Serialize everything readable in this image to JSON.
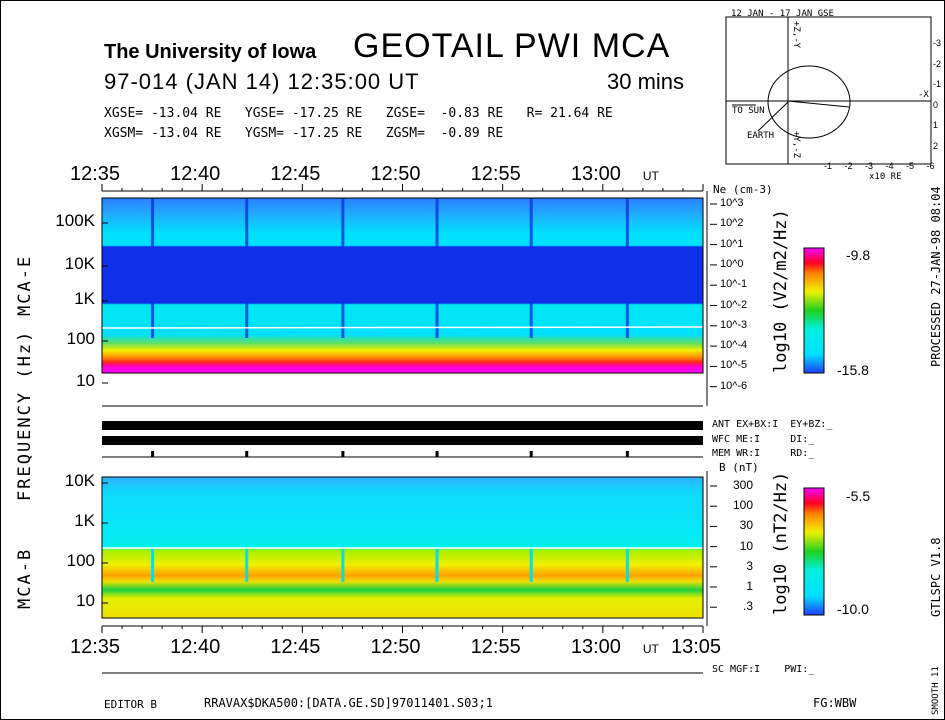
{
  "header": {
    "institution": "The University of Iowa",
    "title": "GEOTAIL PWI MCA",
    "date_line": "97-014 (JAN 14) 12:35:00 UT",
    "duration": "30 mins",
    "gse_line": "XGSE= -13.04 RE   YGSE= -17.25 RE   ZGSE=  -0.83 RE   R= 21.64 RE",
    "gsm_line": "XGSM= -13.04 RE   YGSM= -17.25 RE   ZGSM=  -0.89 RE"
  },
  "orbit_plot": {
    "title": "12 JAN - 17 JAN  GSE",
    "to_sun": "TO SUN",
    "earth": "EARTH",
    "x_label": "x10 RE",
    "x_ticks": [
      "-1",
      "-2",
      "-3",
      "-4",
      "-5",
      "-6"
    ],
    "y_ticks": [
      "-3",
      "-2",
      "-1",
      "0",
      "1",
      "2"
    ],
    "axis_top": "+Z,-Y",
    "axis_bottom": "+Y,-Z",
    "axis_right": "-X"
  },
  "chart_data": [
    {
      "type": "heatmap",
      "panel": "MCA-E",
      "ylabel": "FREQUENCY (Hz)",
      "panel_label": "MCA-E",
      "y_ticks": [
        "100K",
        "10K",
        "1K",
        "100",
        "10"
      ],
      "x_ticks": [
        "12:35",
        "12:40",
        "12:45",
        "12:50",
        "12:55",
        "13:00"
      ],
      "x_unit": "UT",
      "right_axis_title": "Ne (cm-3)",
      "right_axis_ticks": [
        "10^3",
        "10^2",
        "10^1",
        "10^0",
        "10^-1",
        "10^-2",
        "10^-3",
        "10^-4",
        "10^-5",
        "10^-6"
      ],
      "colorbar_label": "log10 (V2/m2/Hz)",
      "colorbar_max": "-9.8",
      "colorbar_min": "-15.8"
    },
    {
      "type": "heatmap",
      "panel": "MCA-B",
      "panel_label": "MCA-B",
      "y_ticks": [
        "10K",
        "1K",
        "100",
        "10"
      ],
      "x_ticks": [
        "12:35",
        "12:40",
        "12:45",
        "12:50",
        "12:55",
        "13:00",
        "13:05"
      ],
      "x_unit": "UT",
      "right_axis_title": "B (nT)",
      "right_axis_ticks": [
        "300",
        "100",
        "30",
        "10",
        "3",
        "1",
        ".3"
      ],
      "colorbar_label": "log10 (nT2/Hz)",
      "colorbar_max": "-5.5",
      "colorbar_min": "-10.0"
    }
  ],
  "status": {
    "ant": "ANT EX+BX:I  EY+BZ:_",
    "wfc": "WFC ME:I     DI:_",
    "mem": "MEM WR:I     RD:_",
    "sc": "SC MGF:I    PWI:_"
  },
  "footer": {
    "editor": "EDITOR B",
    "file": "RRAVAX$DKA500:[DATA.GE.SD]97011401.S03;1",
    "fg": "FG:WBW"
  },
  "side": {
    "processed": "PROCESSED 27-JAN-98  08:04",
    "version": "GTLSPC   V1.8",
    "smooth": "SMOOTH 11"
  }
}
